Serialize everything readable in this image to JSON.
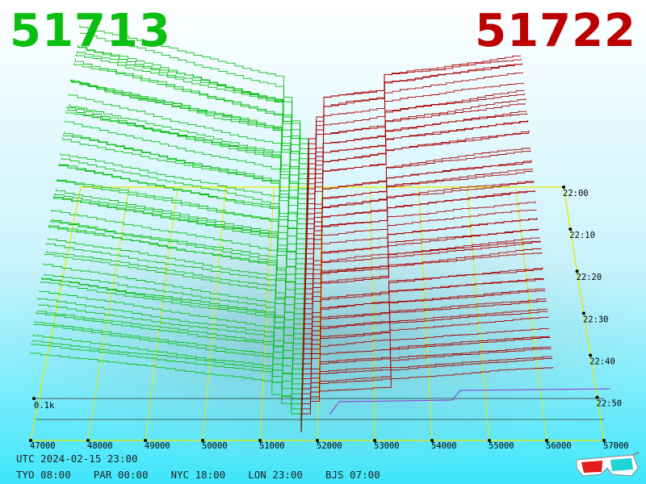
{
  "prices": {
    "bid": "51713",
    "ask": "51722"
  },
  "colors": {
    "bid": "#0bbf12",
    "ask": "#aa0000",
    "grid": "#e8e800",
    "axis": "#000000",
    "volume": "#9933cc"
  },
  "chart_data": {
    "type": "depth-3d",
    "x_axis": {
      "ticks": [
        47000,
        48000,
        49000,
        50000,
        51000,
        52000,
        53000,
        54000,
        55000,
        56000,
        57000
      ],
      "labels": [
        "47000",
        "48000",
        "49000",
        "50000",
        "51000",
        "52000",
        "53000",
        "54000",
        "55000",
        "56000",
        "57000"
      ]
    },
    "time_axis": {
      "labels": [
        "22:00",
        "22:10",
        "22:20",
        "22:30",
        "22:40",
        "22:50"
      ]
    },
    "volume_label": "0.1k",
    "best_bid": 51713,
    "best_ask": 51722
  },
  "info": {
    "utc": "UTC 2024-02-15 23:00",
    "timezones": [
      "TYO 08:00",
      "PAR 00:00",
      "NYC 18:00",
      "LON 23:00",
      "BJS 07:00"
    ]
  },
  "icons": {
    "glasses": "3d-glasses-icon"
  }
}
